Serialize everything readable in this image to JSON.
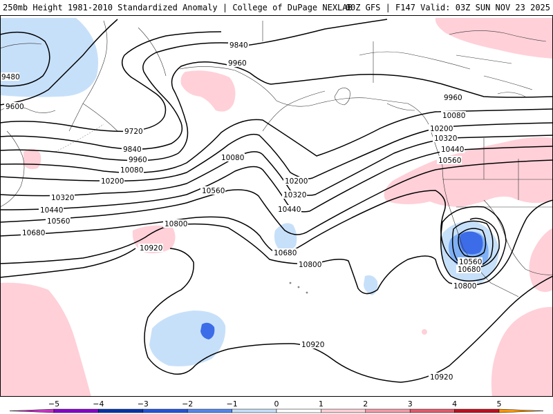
{
  "header": {
    "title_left": "250mb Height 1981-2010 Standardized Anomaly | College of DuPage NEXLAB",
    "title_right": "00Z GFS | F147 Valid: 03Z SUN NOV 23 2025"
  },
  "contour_labels": [
    {
      "id": "9480",
      "text": "9480"
    },
    {
      "id": "9600",
      "text": "9600"
    },
    {
      "id": "9720",
      "text": "9720"
    },
    {
      "id": "9840-a",
      "text": "9840"
    },
    {
      "id": "9840-b",
      "text": "9840"
    },
    {
      "id": "9960-a",
      "text": "9960"
    },
    {
      "id": "9960-b",
      "text": "9960"
    },
    {
      "id": "9960-c",
      "text": "9960"
    },
    {
      "id": "10080-a",
      "text": "10080"
    },
    {
      "id": "10080-b",
      "text": "10080"
    },
    {
      "id": "10080-c",
      "text": "10080"
    },
    {
      "id": "10200-a",
      "text": "10200"
    },
    {
      "id": "10200-b",
      "text": "10200"
    },
    {
      "id": "10200-c",
      "text": "10200"
    },
    {
      "id": "10320-a",
      "text": "10320"
    },
    {
      "id": "10320-b",
      "text": "10320"
    },
    {
      "id": "10320-c",
      "text": "10320"
    },
    {
      "id": "10440-a",
      "text": "10440"
    },
    {
      "id": "10440-b",
      "text": "10440"
    },
    {
      "id": "10440-c",
      "text": "10440"
    },
    {
      "id": "10560-a",
      "text": "10560"
    },
    {
      "id": "10560-b",
      "text": "10560"
    },
    {
      "id": "10560-c",
      "text": "10560"
    },
    {
      "id": "10560-d",
      "text": "10560"
    },
    {
      "id": "10680-a",
      "text": "10680"
    },
    {
      "id": "10680-b",
      "text": "10680"
    },
    {
      "id": "10680-c",
      "text": "10680"
    },
    {
      "id": "10800-a",
      "text": "10800"
    },
    {
      "id": "10800-b",
      "text": "10800"
    },
    {
      "id": "10800-c",
      "text": "10800"
    },
    {
      "id": "10920-a",
      "text": "10920"
    },
    {
      "id": "10920-b",
      "text": "10920"
    },
    {
      "id": "10920-c",
      "text": "10920"
    }
  ],
  "colorbar": {
    "ticks": [
      "−5",
      "−4",
      "−3",
      "−2",
      "−1",
      "0",
      "1",
      "2",
      "3",
      "4",
      "5"
    ],
    "colors": [
      "#cc33cc",
      "#8800cc",
      "#0033aa",
      "#2255dd",
      "#5588ee",
      "#c7e0fa",
      "#ffffff",
      "#ffd0d8",
      "#f49aa8",
      "#e55a6c",
      "#c01020",
      "#ff9900"
    ]
  },
  "colors": {
    "negative_anomaly_light": "#c7e0fa",
    "negative_anomaly_mid": "#7fb0f5",
    "negative_anomaly_strong": "#3d6ce8",
    "positive_anomaly_light": "#ffd0d8"
  }
}
